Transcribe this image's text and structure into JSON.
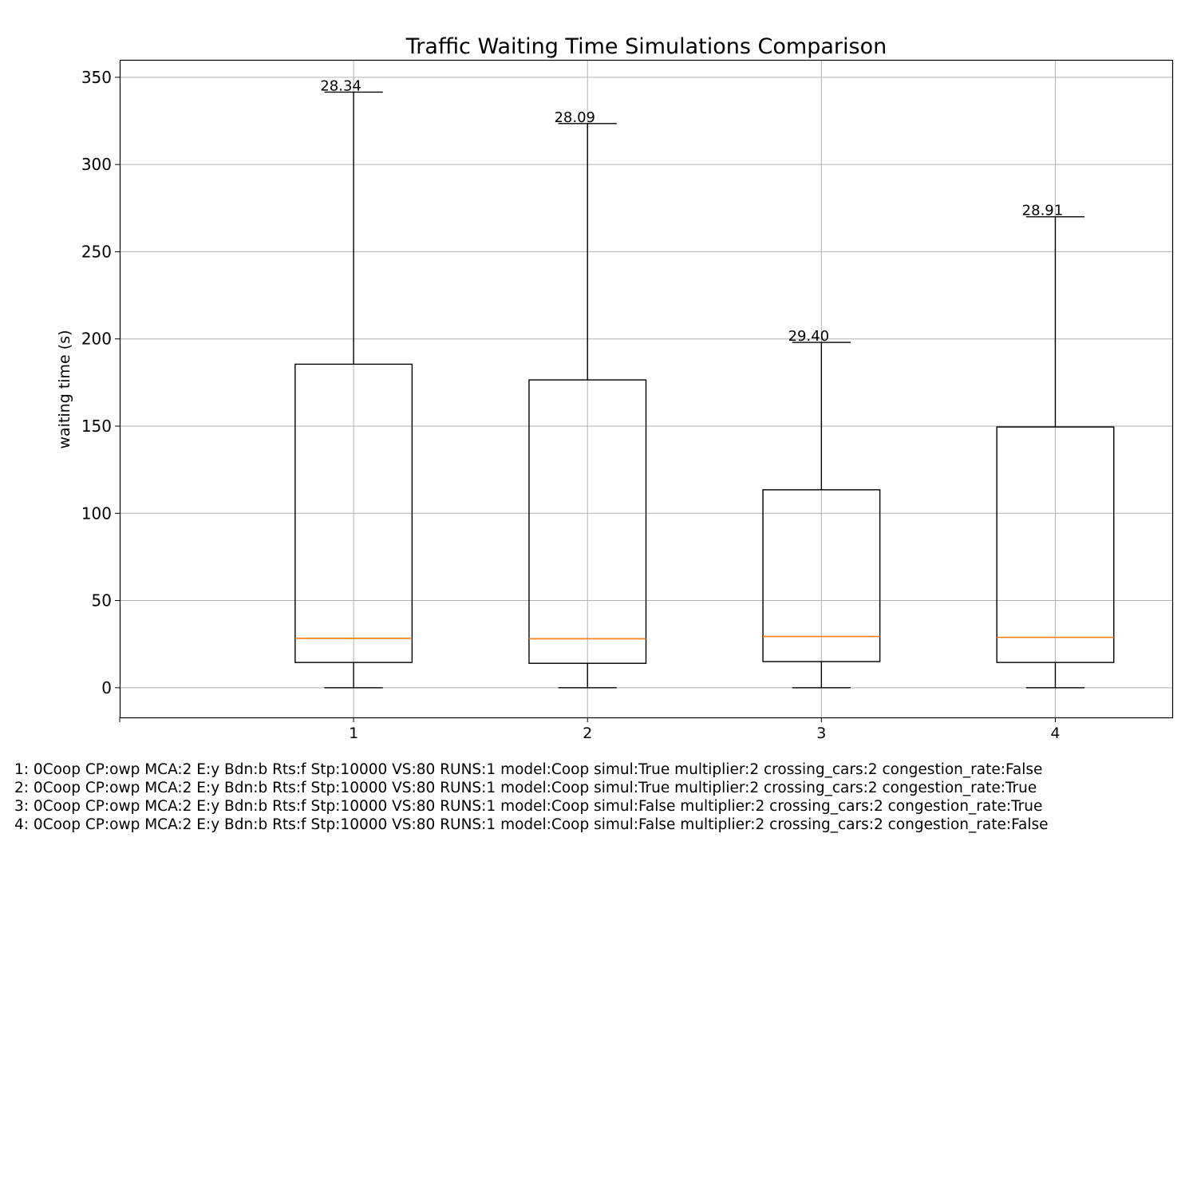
{
  "chart_data": {
    "type": "box",
    "title": "Traffic Waiting Time Simulations Comparison",
    "xlabel": "",
    "ylabel": "waiting time (s)",
    "ylim": [
      -17,
      360
    ],
    "xlim": [
      0,
      4.5
    ],
    "yticks": [
      0,
      50,
      100,
      150,
      200,
      250,
      300,
      350
    ],
    "grid": true,
    "categories": [
      "1",
      "2",
      "3",
      "4"
    ],
    "boxes": [
      {
        "label": "1",
        "whisker_low": 0,
        "q1": 14.5,
        "median": 28.34,
        "q3": 185.5,
        "whisker_high": 341.5,
        "annotation": "28.34"
      },
      {
        "label": "2",
        "whisker_low": 0,
        "q1": 14,
        "median": 28.09,
        "q3": 176.5,
        "whisker_high": 323.5,
        "annotation": "28.09"
      },
      {
        "label": "3",
        "whisker_low": 0,
        "q1": 15,
        "median": 29.4,
        "q3": 113.5,
        "whisker_high": 198,
        "annotation": "29.40"
      },
      {
        "label": "4",
        "whisker_low": 0,
        "q1": 14.5,
        "median": 28.91,
        "q3": 149.5,
        "whisker_high": 270,
        "annotation": "28.91"
      }
    ],
    "colors": {
      "box": "#000000",
      "median": "#ff7f0e",
      "grid": "#b0b0b0"
    }
  },
  "legend_lines": [
    "1: 0Coop CP:owp MCA:2 E:y Bdn:b Rts:f Stp:10000 VS:80 RUNS:1 model:Coop simul:True multiplier:2 crossing_cars:2 congestion_rate:False",
    "2: 0Coop CP:owp MCA:2 E:y Bdn:b Rts:f Stp:10000 VS:80 RUNS:1 model:Coop simul:True multiplier:2 crossing_cars:2 congestion_rate:True",
    "3: 0Coop CP:owp MCA:2 E:y Bdn:b Rts:f Stp:10000 VS:80 RUNS:1 model:Coop simul:False multiplier:2 crossing_cars:2 congestion_rate:True",
    "4: 0Coop CP:owp MCA:2 E:y Bdn:b Rts:f Stp:10000 VS:80 RUNS:1 model:Coop simul:False multiplier:2 crossing_cars:2 congestion_rate:False"
  ]
}
